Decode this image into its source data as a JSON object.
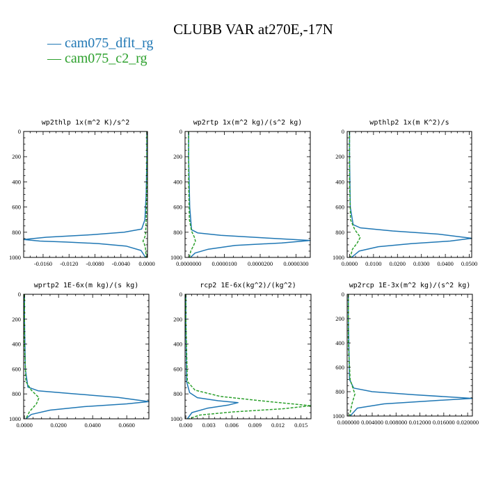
{
  "figure": {
    "title": "CLUBB VAR at270E,-17N",
    "legend": [
      {
        "label": "— cam075_dflt_rg",
        "color": "#1f77b4"
      },
      {
        "label": "— cam075_c2_rg",
        "color": "#2ca02c"
      }
    ]
  },
  "chart_data": [
    {
      "type": "line",
      "title": "wp2thlp  1x(m^2 K)/s^2",
      "xlim": [
        -0.019,
        0.0001
      ],
      "ylim": [
        0,
        1000
      ],
      "y_inverted": true,
      "xticks": [
        -0.016,
        -0.012,
        -0.008,
        -0.004,
        0
      ],
      "xtick_labels": [
        "-0.0160",
        "-0.0120",
        "-0.0080",
        "-0.0040",
        "0.0000"
      ],
      "yticks": [
        0,
        200,
        400,
        600,
        800,
        1000
      ],
      "ytick_labels": [
        "0",
        "200",
        "400",
        "600",
        "800",
        "1000"
      ],
      "series": [
        {
          "name": "cam075_dflt_rg",
          "color": "#1f77b4",
          "dash": "",
          "x": [
            0,
            0,
            -0.0001,
            -0.0003,
            -0.0008,
            -0.0035,
            -0.0085,
            -0.0155,
            -0.019,
            -0.0165,
            -0.0125,
            -0.0075,
            -0.0032,
            -0.0009,
            -0.0002
          ],
          "y": [
            0,
            200,
            500,
            700,
            775,
            800,
            820,
            840,
            858,
            870,
            878,
            890,
            910,
            945,
            1000
          ]
        },
        {
          "name": "cam075_c2_rg",
          "color": "#2ca02c",
          "dash": "4,2",
          "x": [
            0,
            0,
            -0.0001,
            -0.0002,
            -0.0004,
            -0.0006,
            -0.0004,
            -0.0002,
            -0.0001
          ],
          "y": [
            0,
            400,
            700,
            820,
            850,
            870,
            890,
            930,
            1000
          ]
        }
      ]
    },
    {
      "type": "line",
      "title": "wp2rtp  1x(m^2 kg)/(s^2 kg)",
      "xlim": [
        -1e-06,
        3.4e-05
      ],
      "ylim": [
        0,
        1000
      ],
      "y_inverted": true,
      "xticks": [
        0,
        1e-05,
        2e-05,
        3e-05
      ],
      "xtick_labels": [
        "0.0000000",
        "0.0000100",
        "0.0000200",
        "0.0000300"
      ],
      "yticks": [
        0,
        200,
        400,
        600,
        800,
        1000
      ],
      "ytick_labels": [
        "0",
        "200",
        "400",
        "600",
        "800",
        "1000"
      ],
      "series": [
        {
          "name": "cam075_dflt_rg",
          "color": "#1f77b4",
          "dash": "",
          "x": [
            0,
            0,
            3e-07,
            8e-07,
            2.5e-06,
            9e-06,
            2.1e-05,
            3.4e-05,
            2.6e-05,
            1.3e-05,
            5.5e-06,
            1.8e-06,
            5e-07
          ],
          "y": [
            0,
            200,
            600,
            780,
            805,
            825,
            845,
            865,
            885,
            905,
            935,
            965,
            1000
          ]
        },
        {
          "name": "cam075_c2_rg",
          "color": "#2ca02c",
          "dash": "4,2",
          "x": [
            0,
            0,
            2e-07,
            8e-07,
            1.6e-06,
            1.9e-06,
            1.4e-06,
            6e-07,
            2e-07
          ],
          "y": [
            0,
            400,
            700,
            790,
            840,
            870,
            905,
            950,
            1000
          ]
        }
      ]
    },
    {
      "type": "line",
      "title": "wpthlp2  1x(m K^2)/s",
      "xlim": [
        -0.001,
        0.051
      ],
      "ylim": [
        0,
        1000
      ],
      "y_inverted": true,
      "xticks": [
        0,
        0.01,
        0.02,
        0.03,
        0.04,
        0.05
      ],
      "xtick_labels": [
        "0.0000",
        "0.0100",
        "0.0200",
        "0.0300",
        "0.0400",
        "0.0500"
      ],
      "yticks": [
        0,
        200,
        400,
        600,
        800,
        1000
      ],
      "ytick_labels": [
        "0",
        "200",
        "400",
        "600",
        "800",
        "1000"
      ],
      "series": [
        {
          "name": "cam075_dflt_rg",
          "color": "#1f77b4",
          "dash": "",
          "x": [
            0,
            0,
            0.0003,
            0.0015,
            0.0045,
            0.018,
            0.037,
            0.051,
            0.042,
            0.026,
            0.012,
            0.004,
            0.0008
          ],
          "y": [
            0,
            200,
            600,
            740,
            765,
            790,
            815,
            848,
            870,
            890,
            915,
            950,
            1000
          ]
        },
        {
          "name": "cam075_c2_rg",
          "color": "#2ca02c",
          "dash": "4,2",
          "x": [
            0,
            0,
            0.0004,
            0.0022,
            0.0045,
            0.0032,
            0.0012,
            0.0003
          ],
          "y": [
            0,
            400,
            700,
            780,
            840,
            885,
            935,
            1000
          ]
        }
      ]
    },
    {
      "type": "line",
      "title": "wprtp2  1E-6x(m kg)/(s kg)",
      "xlim": [
        -0.0005,
        0.073
      ],
      "ylim": [
        0,
        1000
      ],
      "y_inverted": true,
      "xticks": [
        0,
        0.02,
        0.04,
        0.06
      ],
      "xtick_labels": [
        "0.0000",
        "0.0200",
        "0.0400",
        "0.0600"
      ],
      "yticks": [
        0,
        200,
        400,
        600,
        800,
        1000
      ],
      "ytick_labels": [
        "0",
        "200",
        "400",
        "600",
        "800",
        "1000"
      ],
      "series": [
        {
          "name": "cam075_dflt_rg",
          "color": "#1f77b4",
          "dash": "",
          "x": [
            0,
            0,
            0.0005,
            0.002,
            0.008,
            0.03,
            0.055,
            0.073,
            0.06,
            0.035,
            0.015,
            0.004,
            0.0008
          ],
          "y": [
            0,
            200,
            600,
            745,
            775,
            800,
            828,
            862,
            880,
            902,
            930,
            965,
            1000
          ]
        },
        {
          "name": "cam075_c2_rg",
          "color": "#2ca02c",
          "dash": "4,2",
          "x": [
            0,
            0,
            0.0008,
            0.004,
            0.0085,
            0.007,
            0.003,
            0.0008
          ],
          "y": [
            0,
            400,
            700,
            770,
            830,
            880,
            940,
            1000
          ]
        }
      ]
    },
    {
      "type": "line",
      "title": "rcp2  1E-6x(kg^2)/(kg^2)",
      "xlim": [
        -0.0001,
        0.0163
      ],
      "ylim": [
        0,
        1000
      ],
      "y_inverted": true,
      "xticks": [
        0,
        0.003,
        0.006,
        0.009,
        0.012,
        0.015
      ],
      "xtick_labels": [
        "0.000",
        "0.003",
        "0.006",
        "0.009",
        "0.012",
        "0.015"
      ],
      "yticks": [
        0,
        200,
        400,
        600,
        800,
        1000
      ],
      "ytick_labels": [
        "0",
        "200",
        "400",
        "600",
        "800",
        "1000"
      ],
      "series": [
        {
          "name": "cam075_dflt_rg",
          "color": "#1f77b4",
          "dash": "",
          "x": [
            0,
            0,
            0.0001,
            0.0005,
            0.0015,
            0.0042,
            0.0068,
            0.0055,
            0.0028,
            0.0008,
            0.0002
          ],
          "y": [
            0,
            200,
            700,
            790,
            830,
            855,
            870,
            890,
            915,
            950,
            1000
          ]
        },
        {
          "name": "cam075_c2_rg",
          "color": "#2ca02c",
          "dash": "4,2",
          "x": [
            0,
            0,
            0.0002,
            0.0012,
            0.0045,
            0.0105,
            0.0163,
            0.0125,
            0.006,
            0.0018,
            0.0004
          ],
          "y": [
            0,
            200,
            700,
            770,
            820,
            860,
            895,
            920,
            945,
            970,
            1000
          ]
        }
      ]
    },
    {
      "type": "line",
      "title": "wp2rcp  1E-3x(m^2 kg)/(s^2 kg)",
      "xlim": [
        -0.0002,
        0.0208
      ],
      "ylim": [
        0,
        1000
      ],
      "y_inverted": true,
      "xticks": [
        0,
        0.004,
        0.008,
        0.012,
        0.016,
        0.02
      ],
      "xtick_labels": [
        "0.000000",
        "0.004000",
        "0.008000",
        "0.012000",
        "0.016000",
        "0.020000"
      ],
      "yticks": [
        0,
        200,
        400,
        600,
        800,
        1000
      ],
      "ytick_labels": [
        "0",
        "200",
        "400",
        "600",
        "800",
        "1000"
      ],
      "series": [
        {
          "name": "cam075_dflt_rg",
          "color": "#1f77b4",
          "dash": "",
          "x": [
            0,
            0,
            0.0002,
            0.0009,
            0.004,
            0.011,
            0.0208,
            0.014,
            0.006,
            0.0015,
            0.0003
          ],
          "y": [
            0,
            200,
            700,
            770,
            800,
            825,
            855,
            875,
            900,
            935,
            1000
          ]
        },
        {
          "name": "cam075_c2_rg",
          "color": "#2ca02c",
          "dash": "4,2",
          "x": [
            0,
            0,
            0.0003,
            0.0011,
            0.0006,
            0.0002
          ],
          "y": [
            0,
            400,
            700,
            820,
            900,
            1000
          ]
        }
      ]
    }
  ]
}
